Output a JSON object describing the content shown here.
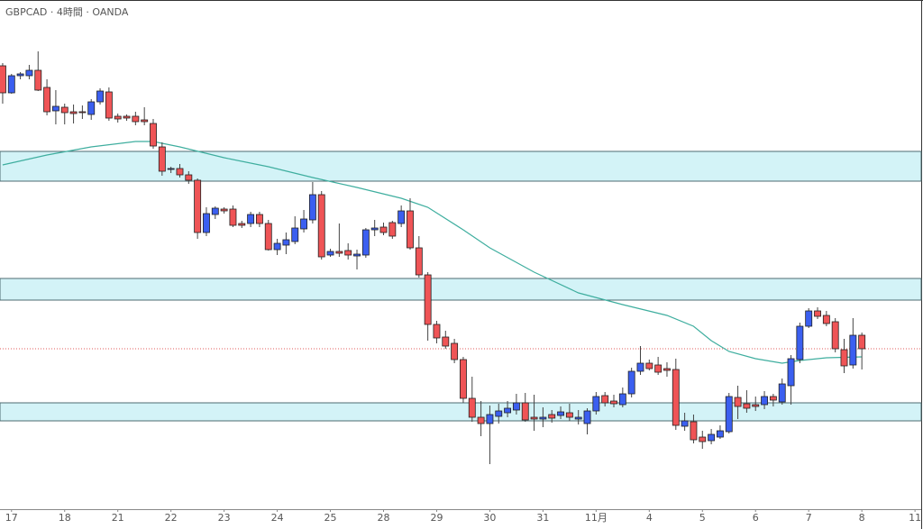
{
  "chart_data": {
    "type": "candlestick",
    "title": "GBPCAD · 4時間 · OANDA",
    "up_color": "#3b5ff0",
    "down_color": "#ef5456",
    "ylim": [
      1.7435,
      1.8
    ],
    "xlim": [
      -0.3,
      103.7
    ],
    "xticks": [
      {
        "value": 1,
        "label": "17"
      },
      {
        "value": 7,
        "label": "18"
      },
      {
        "value": 13,
        "label": "21"
      },
      {
        "value": 19,
        "label": "22"
      },
      {
        "value": 25,
        "label": "23"
      },
      {
        "value": 31,
        "label": "24"
      },
      {
        "value": 37,
        "label": "25"
      },
      {
        "value": 43,
        "label": "28"
      },
      {
        "value": 49,
        "label": "29"
      },
      {
        "value": 55,
        "label": "30"
      },
      {
        "value": 61,
        "label": "31"
      },
      {
        "value": 67,
        "label": "11月"
      },
      {
        "value": 73,
        "label": "4"
      },
      {
        "value": 79,
        "label": "5"
      },
      {
        "value": 85,
        "label": "6"
      },
      {
        "value": 91,
        "label": "7"
      },
      {
        "value": 97,
        "label": "8"
      },
      {
        "value": 103,
        "label": "11"
      }
    ],
    "open": [
      1.7927,
      1.7897,
      1.7916,
      1.7916,
      1.7922,
      1.7903,
      1.7877,
      1.7881,
      1.7876,
      1.7876,
      1.7873,
      1.7887,
      1.7898,
      1.7871,
      1.7871,
      1.7871,
      1.7867,
      1.7863,
      1.7837,
      1.7812,
      1.7813,
      1.7806,
      1.78,
      1.7742,
      1.7762,
      1.7768,
      1.7768,
      1.7752,
      1.7752,
      1.7762,
      1.7752,
      1.7723,
      1.7728,
      1.7732,
      1.7746,
      1.7756,
      1.7784,
      1.7717,
      1.7721,
      1.7722,
      1.7716,
      1.7717,
      1.7745,
      1.7748,
      1.7753,
      1.7752,
      1.7766,
      1.7725,
      1.7695,
      1.764,
      1.7626,
      1.7619,
      1.7601,
      1.7558,
      1.7537,
      1.753,
      1.7538,
      1.7542,
      1.7545,
      1.7553,
      1.7537,
      1.7535,
      1.754,
      1.7539,
      1.7542,
      1.7535,
      1.753,
      1.7544,
      1.7561,
      1.7555,
      1.7551,
      1.7563,
      1.7588,
      1.7597,
      1.7595,
      1.7591,
      1.759,
      1.7527,
      1.7532,
      1.7515,
      1.7511,
      1.7515,
      1.7521,
      1.7559,
      1.7552,
      1.7551,
      1.7551,
      1.756,
      1.7554,
      1.7572,
      1.7601,
      1.7638,
      1.7655,
      1.765,
      1.7643,
      1.7612,
      1.7595,
      1.7628
    ],
    "high": [
      1.793,
      1.7918,
      1.792,
      1.7928,
      1.7943,
      1.7912,
      1.79,
      1.7885,
      1.7884,
      1.7883,
      1.789,
      1.7902,
      1.7903,
      1.7874,
      1.7873,
      1.7876,
      1.7881,
      1.7868,
      1.7842,
      1.7815,
      1.7818,
      1.781,
      1.7802,
      1.777,
      1.7771,
      1.777,
      1.7772,
      1.7755,
      1.7765,
      1.7765,
      1.7756,
      1.7735,
      1.7742,
      1.776,
      1.7767,
      1.7798,
      1.7788,
      1.7724,
      1.7752,
      1.773,
      1.7723,
      1.7747,
      1.7756,
      1.7753,
      1.7755,
      1.7772,
      1.778,
      1.7738,
      1.7698,
      1.7644,
      1.7633,
      1.7624,
      1.7604,
      1.7582,
      1.7555,
      1.755,
      1.7552,
      1.7555,
      1.7563,
      1.7564,
      1.7562,
      1.7548,
      1.7545,
      1.7549,
      1.7552,
      1.7545,
      1.7547,
      1.7565,
      1.7565,
      1.7562,
      1.757,
      1.7592,
      1.7616,
      1.7601,
      1.7604,
      1.7598,
      1.7602,
      1.7542,
      1.754,
      1.7522,
      1.7524,
      1.7528,
      1.7564,
      1.7572,
      1.7567,
      1.756,
      1.7566,
      1.7563,
      1.758,
      1.7606,
      1.7642,
      1.7658,
      1.7659,
      1.7655,
      1.7647,
      1.7624,
      1.7647,
      1.7631
    ],
    "low": [
      1.7885,
      1.7896,
      1.7912,
      1.7912,
      1.7899,
      1.7872,
      1.7862,
      1.7862,
      1.7863,
      1.7868,
      1.7867,
      1.7884,
      1.7866,
      1.7864,
      1.7866,
      1.7861,
      1.7861,
      1.7835,
      1.7805,
      1.7808,
      1.7803,
      1.7796,
      1.7735,
      1.7738,
      1.7757,
      1.7763,
      1.7748,
      1.7747,
      1.7748,
      1.7748,
      1.7722,
      1.7717,
      1.7718,
      1.7729,
      1.7742,
      1.7752,
      1.7712,
      1.7715,
      1.7715,
      1.7712,
      1.7701,
      1.7714,
      1.7738,
      1.7739,
      1.7735,
      1.7748,
      1.7723,
      1.7692,
      1.7622,
      1.7619,
      1.7613,
      1.7597,
      1.7553,
      1.7532,
      1.7516,
      1.7485,
      1.753,
      1.7537,
      1.754,
      1.7532,
      1.7522,
      1.7526,
      1.7531,
      1.7535,
      1.7533,
      1.7529,
      1.7518,
      1.754,
      1.7549,
      1.7548,
      1.7548,
      1.7559,
      1.7584,
      1.7589,
      1.7584,
      1.7582,
      1.7523,
      1.7522,
      1.7508,
      1.7502,
      1.7507,
      1.7513,
      1.7519,
      1.7535,
      1.7542,
      1.7544,
      1.7546,
      1.7549,
      1.7551,
      1.7551,
      1.7597,
      1.7636,
      1.7646,
      1.7638,
      1.7609,
      1.7586,
      1.7591,
      1.759
    ],
    "close": [
      1.7897,
      1.7916,
      1.7918,
      1.7922,
      1.79,
      1.7876,
      1.7882,
      1.7875,
      1.7874,
      1.7875,
      1.7887,
      1.7899,
      1.7869,
      1.7868,
      1.7869,
      1.7865,
      1.7865,
      1.7838,
      1.781,
      1.7813,
      1.7806,
      1.78,
      1.7742,
      1.7763,
      1.7769,
      1.7766,
      1.775,
      1.775,
      1.7762,
      1.7752,
      1.7723,
      1.773,
      1.7734,
      1.7747,
      1.7757,
      1.7784,
      1.7715,
      1.7721,
      1.7719,
      1.7717,
      1.7718,
      1.7745,
      1.7747,
      1.7742,
      1.7738,
      1.7766,
      1.7725,
      1.7695,
      1.764,
      1.7625,
      1.7616,
      1.7601,
      1.7558,
      1.7537,
      1.753,
      1.754,
      1.7544,
      1.7547,
      1.7553,
      1.7534,
      1.7535,
      1.7537,
      1.7536,
      1.7543,
      1.7537,
      1.7537,
      1.7544,
      1.756,
      1.7553,
      1.7552,
      1.7563,
      1.7588,
      1.7597,
      1.7591,
      1.7587,
      1.7589,
      1.7528,
      1.7533,
      1.7512,
      1.751,
      1.7518,
      1.7522,
      1.756,
      1.7549,
      1.7547,
      1.7549,
      1.756,
      1.7556,
      1.7574,
      1.7602,
      1.7638,
      1.7655,
      1.7649,
      1.7641,
      1.7613,
      1.7594,
      1.7628,
      1.7613
    ],
    "moving_average": {
      "color": "#3fae9f",
      "x": [
        0,
        5,
        10,
        15,
        17,
        20,
        25,
        30,
        35,
        40,
        45,
        48,
        52,
        55,
        60,
        65,
        70,
        75,
        78,
        80,
        82,
        85,
        88,
        90,
        93,
        97
      ],
      "values": [
        1.7817,
        1.7828,
        1.7837,
        1.7843,
        1.7843,
        1.7837,
        1.7825,
        1.7815,
        1.7803,
        1.7792,
        1.778,
        1.777,
        1.7745,
        1.7725,
        1.7698,
        1.7675,
        1.7662,
        1.765,
        1.7638,
        1.7622,
        1.761,
        1.7602,
        1.7597,
        1.76,
        1.7603,
        1.7604
      ]
    },
    "zones": {
      "color": "#d3f3f7",
      "border": "#4d6b70",
      "ranges": [
        [
          1.7799,
          1.7832
        ],
        [
          1.7667,
          1.7691
        ],
        [
          1.7533,
          1.7553
        ]
      ]
    },
    "price_line": {
      "value": 1.7613,
      "color": "#e05a5a"
    }
  }
}
